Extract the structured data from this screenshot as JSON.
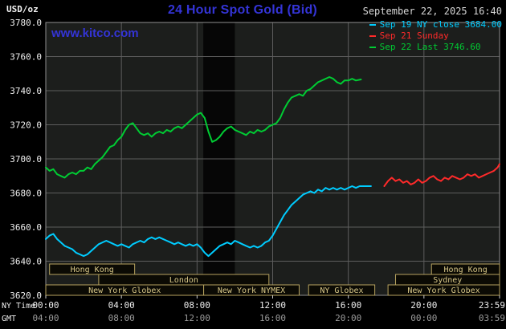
{
  "header": {
    "units_label": "USD/oz",
    "title": "24 Hour Spot Gold (Bid)",
    "datetime": "September 22, 2025 16:40",
    "watermark": "www.kitco.com",
    "brand_color": "#3434d6",
    "legend": [
      {
        "label": "Sep 19 NY close 3684.00",
        "color": "#00ccff"
      },
      {
        "label": "Sep 21 Sunday",
        "color": "#ff2a2a"
      },
      {
        "label": "Sep 22 Last 3746.60",
        "color": "#00cc33"
      }
    ]
  },
  "axes": {
    "ny_label": "NY Time",
    "gmt_label": "GMT",
    "y_ticks": [
      "3780.0",
      "3760.0",
      "3740.0",
      "3720.0",
      "3700.0",
      "3680.0",
      "3660.0",
      "3640.0",
      "3620.0"
    ],
    "x_ticks_hours": [
      0,
      4,
      8,
      12,
      16,
      20,
      24
    ],
    "x_ny": [
      "00:00",
      "04:00",
      "08:00",
      "12:00",
      "16:00",
      "20:00",
      "23:59"
    ],
    "x_gmt": [
      "04:00",
      "08:00",
      "12:00",
      "16:00",
      "20:00",
      "00:00",
      "03:59"
    ]
  },
  "sessions": [
    {
      "label": "Hong Kong",
      "row": 0,
      "start": 0.2,
      "end": 4.7
    },
    {
      "label": "Hong Kong",
      "row": 0,
      "start": 20.4,
      "end": 24.0
    },
    {
      "label": "London",
      "row": 1,
      "start": 2.8,
      "end": 11.8
    },
    {
      "label": "Sydney",
      "row": 1,
      "start": 18.5,
      "end": 24.0
    },
    {
      "label": "New York Globex",
      "row": 2,
      "start": 0.0,
      "end": 8.35
    },
    {
      "label": "New York NYMEX",
      "row": 2,
      "start": 8.35,
      "end": 13.4
    },
    {
      "label": "NY Globex",
      "row": 2,
      "start": 13.9,
      "end": 17.4
    },
    {
      "label": "New York Globex",
      "row": 2,
      "start": 18.1,
      "end": 24.0
    }
  ],
  "highlight_band": {
    "start_hour": 8.33,
    "end_hour": 10.0,
    "color": "#060606"
  },
  "chart_data": {
    "type": "line",
    "title": "24 Hour Spot Gold (Bid)",
    "ylabel": "USD/oz",
    "xlabel": "NY Time (hours)",
    "ylim": [
      3620,
      3780
    ],
    "xlim_hours": [
      0,
      24
    ],
    "grid": true,
    "legend_position": "top-right",
    "plot_bg": "#1c1e1c",
    "series": [
      {
        "id": "sep19",
        "name": "Sep 19 NY close",
        "color": "#00ccff",
        "close": 3684.0,
        "points": [
          [
            0,
            3653
          ],
          [
            0.2,
            3655
          ],
          [
            0.4,
            3656
          ],
          [
            0.6,
            3653
          ],
          [
            0.8,
            3651
          ],
          [
            1,
            3649
          ],
          [
            1.2,
            3648
          ],
          [
            1.4,
            3647
          ],
          [
            1.6,
            3645
          ],
          [
            1.8,
            3644
          ],
          [
            2,
            3643
          ],
          [
            2.2,
            3644
          ],
          [
            2.4,
            3646
          ],
          [
            2.6,
            3648
          ],
          [
            2.8,
            3650
          ],
          [
            3,
            3651
          ],
          [
            3.2,
            3652
          ],
          [
            3.4,
            3651
          ],
          [
            3.6,
            3650
          ],
          [
            3.8,
            3649
          ],
          [
            4,
            3650
          ],
          [
            4.2,
            3649
          ],
          [
            4.4,
            3648
          ],
          [
            4.6,
            3650
          ],
          [
            4.8,
            3651
          ],
          [
            5,
            3652
          ],
          [
            5.2,
            3651
          ],
          [
            5.4,
            3653
          ],
          [
            5.6,
            3654
          ],
          [
            5.8,
            3653
          ],
          [
            6,
            3654
          ],
          [
            6.2,
            3653
          ],
          [
            6.4,
            3652
          ],
          [
            6.6,
            3651
          ],
          [
            6.8,
            3650
          ],
          [
            7,
            3651
          ],
          [
            7.2,
            3650
          ],
          [
            7.4,
            3649
          ],
          [
            7.6,
            3650
          ],
          [
            7.8,
            3649
          ],
          [
            8,
            3650
          ],
          [
            8.2,
            3648
          ],
          [
            8.4,
            3645
          ],
          [
            8.6,
            3643
          ],
          [
            8.8,
            3645
          ],
          [
            9,
            3647
          ],
          [
            9.2,
            3649
          ],
          [
            9.4,
            3650
          ],
          [
            9.6,
            3651
          ],
          [
            9.8,
            3650
          ],
          [
            10,
            3652
          ],
          [
            10.2,
            3651
          ],
          [
            10.4,
            3650
          ],
          [
            10.6,
            3649
          ],
          [
            10.8,
            3648
          ],
          [
            11,
            3649
          ],
          [
            11.2,
            3648
          ],
          [
            11.4,
            3649
          ],
          [
            11.6,
            3651
          ],
          [
            11.8,
            3652
          ],
          [
            12,
            3655
          ],
          [
            12.2,
            3659
          ],
          [
            12.4,
            3663
          ],
          [
            12.6,
            3667
          ],
          [
            12.8,
            3670
          ],
          [
            13,
            3673
          ],
          [
            13.2,
            3675
          ],
          [
            13.4,
            3677
          ],
          [
            13.6,
            3679
          ],
          [
            13.8,
            3680
          ],
          [
            14,
            3681
          ],
          [
            14.2,
            3680
          ],
          [
            14.4,
            3682
          ],
          [
            14.6,
            3681
          ],
          [
            14.8,
            3683
          ],
          [
            15,
            3682
          ],
          [
            15.2,
            3683
          ],
          [
            15.4,
            3682
          ],
          [
            15.6,
            3683
          ],
          [
            15.8,
            3682
          ],
          [
            16,
            3683
          ],
          [
            16.2,
            3684
          ],
          [
            16.4,
            3683
          ],
          [
            16.6,
            3684
          ],
          [
            16.8,
            3684
          ],
          [
            17,
            3684
          ],
          [
            17.2,
            3684
          ]
        ]
      },
      {
        "id": "sep21",
        "name": "Sep 21 Sunday",
        "color": "#ff2a2a",
        "points": [
          [
            17.9,
            3684
          ],
          [
            18.1,
            3687
          ],
          [
            18.3,
            3689
          ],
          [
            18.5,
            3687
          ],
          [
            18.7,
            3688
          ],
          [
            18.9,
            3686
          ],
          [
            19.1,
            3687
          ],
          [
            19.3,
            3685
          ],
          [
            19.5,
            3686
          ],
          [
            19.7,
            3688
          ],
          [
            19.9,
            3686
          ],
          [
            20.1,
            3687
          ],
          [
            20.3,
            3689
          ],
          [
            20.5,
            3690
          ],
          [
            20.7,
            3688
          ],
          [
            20.9,
            3687
          ],
          [
            21.1,
            3689
          ],
          [
            21.3,
            3688
          ],
          [
            21.5,
            3690
          ],
          [
            21.7,
            3689
          ],
          [
            21.9,
            3688
          ],
          [
            22.1,
            3689
          ],
          [
            22.3,
            3691
          ],
          [
            22.5,
            3690
          ],
          [
            22.7,
            3691
          ],
          [
            22.9,
            3689
          ],
          [
            23.1,
            3690
          ],
          [
            23.3,
            3691
          ],
          [
            23.5,
            3692
          ],
          [
            23.7,
            3693
          ],
          [
            23.9,
            3695
          ],
          [
            24,
            3697
          ]
        ]
      },
      {
        "id": "sep22",
        "name": "Sep 22 Last",
        "color": "#00cc33",
        "last": 3746.6,
        "points": [
          [
            0,
            3695
          ],
          [
            0.2,
            3693
          ],
          [
            0.4,
            3694
          ],
          [
            0.6,
            3691
          ],
          [
            0.8,
            3690
          ],
          [
            1,
            3689
          ],
          [
            1.2,
            3691
          ],
          [
            1.4,
            3692
          ],
          [
            1.6,
            3691
          ],
          [
            1.8,
            3693
          ],
          [
            2,
            3693
          ],
          [
            2.2,
            3695
          ],
          [
            2.4,
            3694
          ],
          [
            2.6,
            3697
          ],
          [
            2.8,
            3699
          ],
          [
            3,
            3701
          ],
          [
            3.2,
            3704
          ],
          [
            3.4,
            3707
          ],
          [
            3.6,
            3708
          ],
          [
            3.8,
            3711
          ],
          [
            4,
            3713
          ],
          [
            4.2,
            3717
          ],
          [
            4.4,
            3720
          ],
          [
            4.6,
            3721
          ],
          [
            4.8,
            3718
          ],
          [
            5,
            3715
          ],
          [
            5.2,
            3714
          ],
          [
            5.4,
            3715
          ],
          [
            5.6,
            3713
          ],
          [
            5.8,
            3715
          ],
          [
            6,
            3716
          ],
          [
            6.2,
            3715
          ],
          [
            6.4,
            3717
          ],
          [
            6.6,
            3716
          ],
          [
            6.8,
            3718
          ],
          [
            7,
            3719
          ],
          [
            7.2,
            3718
          ],
          [
            7.4,
            3720
          ],
          [
            7.6,
            3722
          ],
          [
            7.8,
            3724
          ],
          [
            8,
            3726
          ],
          [
            8.2,
            3727
          ],
          [
            8.4,
            3724
          ],
          [
            8.6,
            3716
          ],
          [
            8.8,
            3710
          ],
          [
            9,
            3711
          ],
          [
            9.2,
            3713
          ],
          [
            9.4,
            3716
          ],
          [
            9.6,
            3718
          ],
          [
            9.8,
            3719
          ],
          [
            10,
            3717
          ],
          [
            10.2,
            3716
          ],
          [
            10.4,
            3715
          ],
          [
            10.6,
            3714
          ],
          [
            10.8,
            3716
          ],
          [
            11,
            3715
          ],
          [
            11.2,
            3717
          ],
          [
            11.4,
            3716
          ],
          [
            11.6,
            3717
          ],
          [
            11.8,
            3719
          ],
          [
            12,
            3720
          ],
          [
            12.2,
            3721
          ],
          [
            12.4,
            3724
          ],
          [
            12.6,
            3729
          ],
          [
            12.8,
            3733
          ],
          [
            13,
            3736
          ],
          [
            13.2,
            3737
          ],
          [
            13.4,
            3738
          ],
          [
            13.6,
            3737
          ],
          [
            13.8,
            3740
          ],
          [
            14,
            3741
          ],
          [
            14.2,
            3743
          ],
          [
            14.4,
            3745
          ],
          [
            14.6,
            3746
          ],
          [
            14.8,
            3747
          ],
          [
            15,
            3748
          ],
          [
            15.2,
            3747
          ],
          [
            15.4,
            3745
          ],
          [
            15.6,
            3744
          ],
          [
            15.8,
            3746
          ],
          [
            16,
            3746
          ],
          [
            16.2,
            3747
          ],
          [
            16.4,
            3746
          ],
          [
            16.67,
            3746.6
          ]
        ]
      }
    ]
  }
}
